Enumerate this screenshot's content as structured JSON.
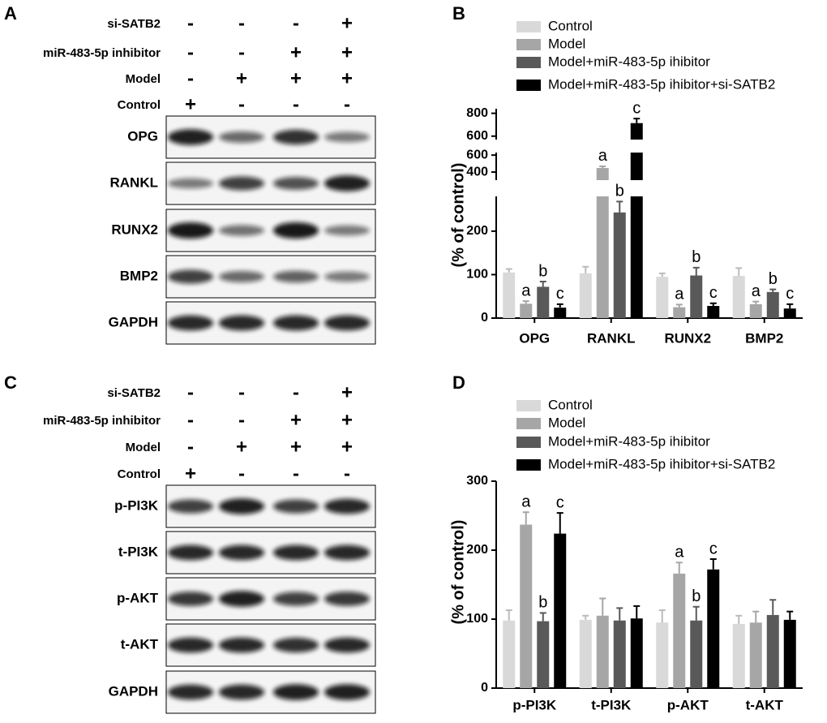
{
  "panels": [
    {
      "letter": "A",
      "conditions": [
        {
          "name": "si-SATB2",
          "signs": [
            "-",
            "-",
            "-",
            "+"
          ]
        },
        {
          "name": "miR-483-5p inhibitor",
          "signs": [
            "-",
            "-",
            "+",
            "+"
          ]
        },
        {
          "name": "Model",
          "signs": [
            "-",
            "+",
            "+",
            "+"
          ]
        },
        {
          "name": "Control",
          "signs": [
            "+",
            "-",
            "-",
            "-"
          ]
        }
      ],
      "bands": [
        "OPG",
        "RANKL",
        "RUNX2",
        "BMP2",
        "GAPDH"
      ]
    },
    {
      "letter": "C",
      "conditions": [
        {
          "name": "si-SATB2",
          "signs": [
            "-",
            "-",
            "-",
            "+"
          ]
        },
        {
          "name": "miR-483-5p inhibitor",
          "signs": [
            "-",
            "-",
            "+",
            "+"
          ]
        },
        {
          "name": "Model",
          "signs": [
            "-",
            "+",
            "+",
            "+"
          ]
        },
        {
          "name": "Control",
          "signs": [
            "+",
            "-",
            "-",
            "-"
          ]
        }
      ],
      "bands": [
        "p-PI3K",
        "t-PI3K",
        "p-AKT",
        "t-AKT",
        "GAPDH"
      ]
    }
  ],
  "chart_data": [
    {
      "type": "bar",
      "panel_label": "B",
      "y_label": "(% of control)",
      "categories": [
        "OPG",
        "RANKL",
        "RUNX2",
        "BMP2"
      ],
      "y_segments": [
        {
          "ylim": [
            0,
            280
          ],
          "yticks": [
            0,
            100,
            200
          ]
        },
        {
          "ylim": [
            305,
            630
          ],
          "yticks": [
            400,
            600
          ]
        },
        {
          "ylim": [
            570,
            840
          ],
          "yticks": [
            600,
            800
          ]
        }
      ],
      "series": [
        {
          "name": "Control",
          "color": "#d9d9d9",
          "values": [
            105,
            103,
            95,
            97
          ],
          "errors": [
            8,
            15,
            8,
            18
          ],
          "annotations": [
            null,
            null,
            null,
            null
          ]
        },
        {
          "name": "Model",
          "color": "#a6a6a6",
          "values": [
            33,
            448,
            25,
            32
          ],
          "errors": [
            6,
            20,
            6,
            6
          ],
          "annotations": [
            "a",
            "a",
            "a",
            "a"
          ]
        },
        {
          "name": "Model+miR-483-5p ihibitor",
          "color": "#595959",
          "values": [
            72,
            243,
            98,
            60
          ],
          "errors": [
            12,
            25,
            18,
            6
          ],
          "annotations": [
            "b",
            "b",
            "b",
            "b"
          ]
        },
        {
          "name": "Model+miR-483-5p ihibitor+si-SATB2",
          "color": "#000000",
          "values": [
            24,
            714,
            28,
            22
          ],
          "errors": [
            8,
            40,
            6,
            10
          ],
          "annotations": [
            "c",
            "c",
            "c",
            "c"
          ]
        }
      ]
    },
    {
      "type": "bar",
      "panel_label": "D",
      "y_label": "(% of control)",
      "categories": [
        "p-PI3K",
        "t-PI3K",
        "p-AKT",
        "t-AKT"
      ],
      "y_segments": [
        {
          "ylim": [
            0,
            300
          ],
          "yticks": [
            0,
            100,
            200,
            300
          ]
        }
      ],
      "series": [
        {
          "name": "Control",
          "color": "#d9d9d9",
          "values": [
            98,
            99,
            95,
            93
          ],
          "errors": [
            15,
            6,
            18,
            12
          ],
          "annotations": [
            null,
            null,
            null,
            null
          ]
        },
        {
          "name": "Model",
          "color": "#a6a6a6",
          "values": [
            237,
            105,
            166,
            95
          ],
          "errors": [
            18,
            25,
            16,
            16
          ],
          "annotations": [
            "a",
            null,
            "a",
            null
          ]
        },
        {
          "name": "Model+miR-483-5p ihibitor",
          "color": "#595959",
          "values": [
            97,
            98,
            98,
            106
          ],
          "errors": [
            12,
            18,
            20,
            22
          ],
          "annotations": [
            "b",
            null,
            "b",
            null
          ]
        },
        {
          "name": "Model+miR-483-5p ihibitor+si-SATB2",
          "color": "#000000",
          "values": [
            224,
            101,
            172,
            99
          ],
          "errors": [
            30,
            18,
            15,
            12
          ],
          "annotations": [
            "c",
            null,
            "c",
            null
          ]
        }
      ]
    }
  ]
}
